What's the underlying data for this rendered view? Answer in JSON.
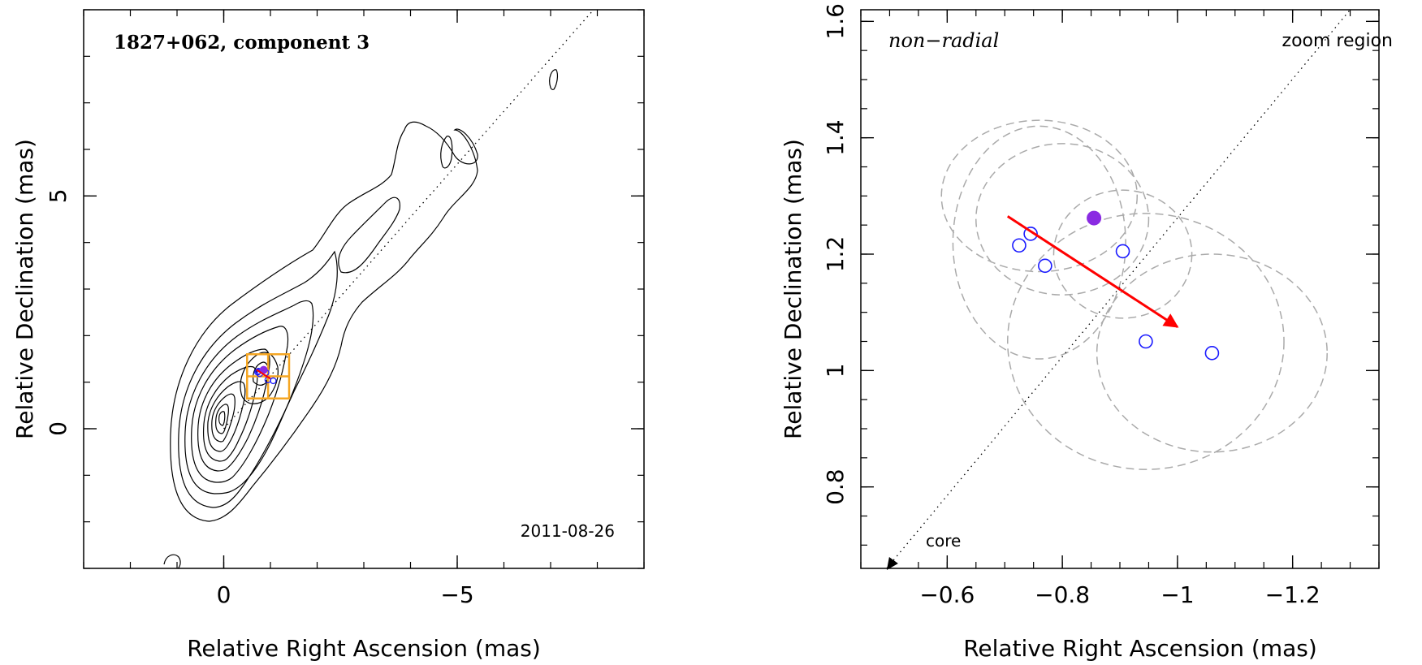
{
  "chart_data": [
    {
      "type": "contour",
      "panel": "left",
      "title": "1827+062, component 3",
      "date_label": "2011-08-26",
      "xlabel": "Relative Right Ascension (mas)",
      "ylabel": "Relative Declination (mas)",
      "xlim": [
        3,
        -9
      ],
      "ylim": [
        -3,
        9
      ],
      "x_ticks": [
        {
          "value": 0,
          "label": "0"
        },
        {
          "value": -5,
          "label": "−5"
        }
      ],
      "y_ticks": [
        {
          "value": 0,
          "label": "0"
        },
        {
          "value": 5,
          "label": "5"
        }
      ],
      "x_minor_step": 1,
      "y_minor_step": 1,
      "jet_axis_direction": [
        -11.0,
        12.5
      ],
      "zoom_box": {
        "x": [
          -0.5,
          -1.4
        ],
        "y": [
          0.65,
          1.6
        ]
      },
      "zoom_box_color": "#f5a623",
      "marker_color": "#1a1aff",
      "highlight_color": "#8a2be2",
      "arrow_color": "#ff0000"
    },
    {
      "type": "scatter",
      "panel": "right",
      "title": "non−radial",
      "corner_label": "zoom region",
      "core_label": "core",
      "xlabel": "Relative Right Ascension (mas)",
      "ylabel": "Relative Declination (mas)",
      "xlim": [
        -0.45,
        -1.35
      ],
      "ylim": [
        0.66,
        1.62
      ],
      "x_ticks": [
        {
          "value": -0.6,
          "label": "−0.6"
        },
        {
          "value": -0.8,
          "label": "−0.8"
        },
        {
          "value": -1.0,
          "label": "−1"
        },
        {
          "value": -1.2,
          "label": "−1.2"
        }
      ],
      "y_ticks": [
        {
          "value": 0.8,
          "label": "0.8"
        },
        {
          "value": 1.0,
          "label": "1"
        },
        {
          "value": 1.2,
          "label": "1.2"
        },
        {
          "value": 1.4,
          "label": "1.4"
        },
        {
          "value": 1.6,
          "label": "1.6"
        }
      ],
      "x_minor_step": 0.05,
      "y_minor_step": 0.05,
      "points": [
        {
          "x": -0.725,
          "y": 1.215
        },
        {
          "x": -0.745,
          "y": 1.235
        },
        {
          "x": -0.77,
          "y": 1.18
        },
        {
          "x": -0.905,
          "y": 1.205
        },
        {
          "x": -0.945,
          "y": 1.05
        },
        {
          "x": -1.06,
          "y": 1.03
        }
      ],
      "highlight_point": {
        "x": -0.855,
        "y": 1.262
      },
      "error_ellipses": [
        {
          "cx": -0.76,
          "cy": 1.3,
          "rx": 0.17,
          "ry": 0.13
        },
        {
          "cx": -0.8,
          "cy": 1.26,
          "rx": 0.15,
          "ry": 0.13
        },
        {
          "cx": -0.76,
          "cy": 1.22,
          "rx": 0.15,
          "ry": 0.2
        },
        {
          "cx": -0.905,
          "cy": 1.2,
          "rx": 0.12,
          "ry": 0.11
        },
        {
          "cx": -0.945,
          "cy": 1.05,
          "rx": 0.24,
          "ry": 0.22
        },
        {
          "cx": -1.06,
          "cy": 1.03,
          "rx": 0.2,
          "ry": 0.17
        }
      ],
      "motion_arrow": {
        "from": {
          "x": -0.705,
          "y": 1.265
        },
        "to": {
          "x": -1.0,
          "y": 1.075
        }
      },
      "jet_axis": {
        "from": {
          "x": -0.495,
          "y": 0.66
        },
        "to": {
          "x": -1.3,
          "y": 1.62
        }
      },
      "marker_color": "#1a1aff",
      "highlight_color": "#8a2be2",
      "arrow_color": "#ff0000",
      "ellipse_color": "#aaaaaa"
    }
  ]
}
